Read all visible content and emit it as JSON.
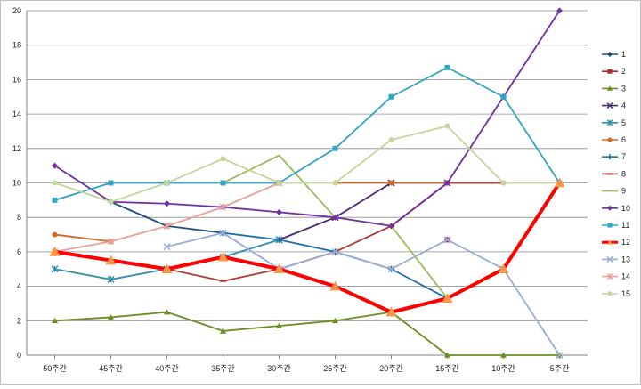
{
  "chart_data": {
    "type": "line",
    "title": "",
    "xlabel": "",
    "ylabel": "",
    "ylim": [
      0,
      20
    ],
    "yticks": [
      0,
      2,
      4,
      6,
      8,
      10,
      12,
      14,
      16,
      18,
      20
    ],
    "grid": true,
    "legend_position": "right",
    "categories": [
      "50주간",
      "45주간",
      "40주간",
      "35주간",
      "30주간",
      "25주간",
      "20주간",
      "15주간",
      "10주간",
      "5주간"
    ],
    "series": [
      {
        "name": "1",
        "color": "#1f4e79",
        "marker": "diamond",
        "values": [
          null,
          8.9,
          7.5,
          7.1,
          null,
          null,
          null,
          null,
          null,
          null
        ]
      },
      {
        "name": "2",
        "color": "#a52a2a",
        "marker": "square",
        "values": [
          null,
          null,
          null,
          null,
          null,
          null,
          null,
          6.7,
          null,
          null
        ]
      },
      {
        "name": "3",
        "color": "#6b8e23",
        "marker": "triangle",
        "values": [
          2,
          2.2,
          2.5,
          1.4,
          1.7,
          2,
          2.5,
          0,
          0,
          0
        ]
      },
      {
        "name": "4",
        "color": "#4b2a6e",
        "marker": "x",
        "values": [
          null,
          null,
          null,
          null,
          6.7,
          8,
          10,
          10,
          null,
          null
        ]
      },
      {
        "name": "5",
        "color": "#2e8fa6",
        "marker": "star",
        "values": [
          5,
          4.4,
          5,
          5.7,
          6.7,
          null,
          null,
          null,
          null,
          null
        ]
      },
      {
        "name": "6",
        "color": "#d2691e",
        "marker": "circle",
        "values": [
          7,
          6.6,
          null,
          null,
          null,
          10,
          10,
          10,
          10,
          null
        ]
      },
      {
        "name": "7",
        "color": "#1f6fa8",
        "marker": "plus",
        "values": [
          null,
          null,
          null,
          7.1,
          6.7,
          6,
          5,
          3.3,
          null,
          null
        ]
      },
      {
        "name": "8",
        "color": "#b03a3a",
        "marker": "dash",
        "values": [
          null,
          null,
          5,
          4.3,
          5,
          6,
          7.5,
          10,
          10,
          null
        ]
      },
      {
        "name": "9",
        "color": "#9bbb59",
        "marker": "none",
        "values": [
          null,
          null,
          null,
          10,
          11.6,
          8,
          7.5,
          3.3,
          null,
          null
        ]
      },
      {
        "name": "10",
        "color": "#7030a0",
        "marker": "diamond",
        "values": [
          11,
          8.9,
          8.8,
          8.6,
          8.3,
          8,
          7.5,
          10,
          15,
          20
        ]
      },
      {
        "name": "11",
        "color": "#31a5c4",
        "marker": "square",
        "values": [
          9,
          10,
          10,
          10,
          10,
          12,
          15,
          16.7,
          15,
          10
        ]
      },
      {
        "name": "12",
        "color": "#ff0000",
        "marker": "triangle",
        "values": [
          6,
          5.5,
          5,
          5.7,
          5,
          4,
          2.5,
          3.3,
          5,
          10
        ]
      },
      {
        "name": "13",
        "color": "#9aabd6",
        "marker": "x",
        "values": [
          null,
          null,
          6.3,
          7.1,
          5,
          6,
          5,
          6.7,
          5,
          0
        ]
      },
      {
        "name": "14",
        "color": "#e6a29a",
        "marker": "star",
        "values": [
          6,
          6.6,
          7.5,
          8.6,
          10,
          null,
          null,
          null,
          null,
          null
        ]
      },
      {
        "name": "15",
        "color": "#c3d69b",
        "marker": "circle",
        "values": [
          10,
          8.9,
          10,
          11.4,
          10,
          10,
          12.5,
          13.3,
          10,
          10
        ]
      }
    ]
  }
}
